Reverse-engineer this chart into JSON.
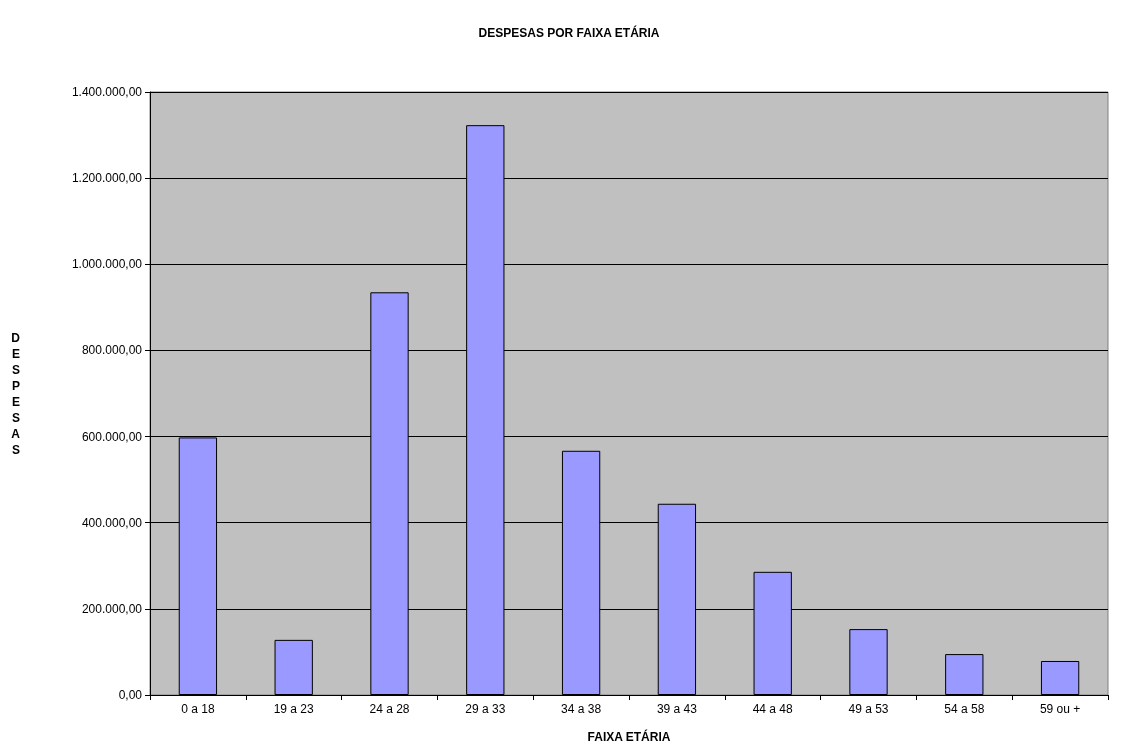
{
  "chart_data": {
    "type": "bar",
    "title": "DESPESAS POR FAIXA ETÁRIA",
    "xlabel": "FAIXA ETÁRIA",
    "ylabel": "DESPESAS",
    "categories": [
      "0 a 18",
      "19 a 23",
      "24 a 28",
      "29 a 33",
      "34 a 38",
      "39 a 43",
      "44 a 48",
      "49 a 53",
      "54 a 58",
      "59 ou +"
    ],
    "values": [
      598000,
      128000,
      935000,
      1323000,
      567000,
      444000,
      286000,
      153000,
      95000,
      79000
    ],
    "color": "#9999ff",
    "ylim": [
      0,
      1400000
    ],
    "yticks": [
      {
        "value": 0,
        "label": "0,00"
      },
      {
        "value": 200000,
        "label": "200.000,00"
      },
      {
        "value": 400000,
        "label": "400.000,00"
      },
      {
        "value": 600000,
        "label": "600.000,00"
      },
      {
        "value": 800000,
        "label": "800.000,00"
      },
      {
        "value": 1000000,
        "label": "1.000.000,00"
      },
      {
        "value": 1200000,
        "label": "1.200.000,00"
      },
      {
        "value": 1400000,
        "label": "1.400.000,00"
      }
    ],
    "grid": "y"
  }
}
